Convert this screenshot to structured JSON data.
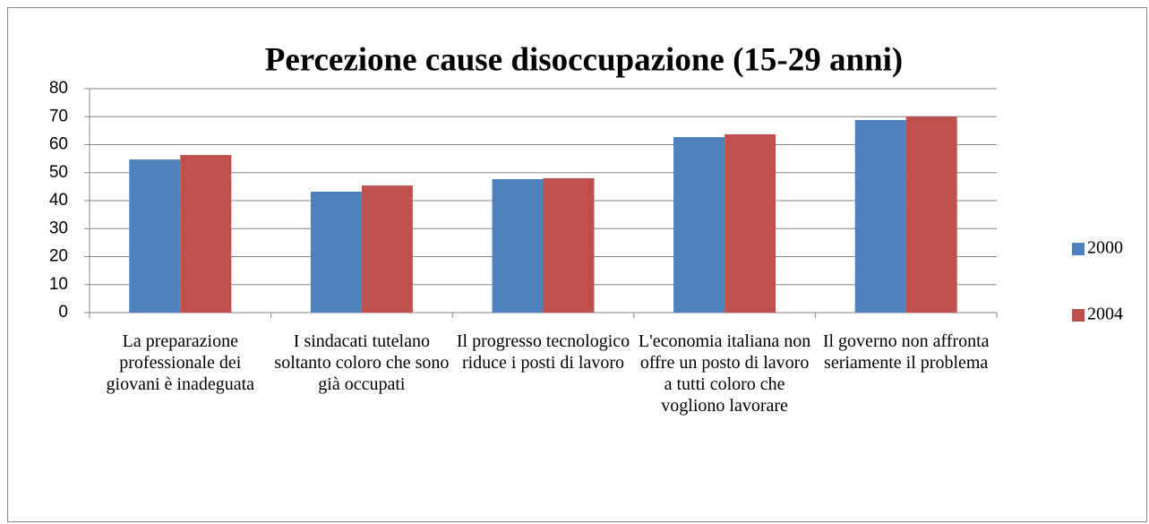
{
  "chart_data": {
    "type": "bar",
    "title": "Percezione cause disoccupazione (15-29 anni)",
    "categories": [
      "La preparazione professionale dei giovani è inadeguata",
      "I sindacati tutelano soltanto coloro che sono già occupati",
      "Il progresso tecnologico riduce i posti di lavoro",
      "L'economia italiana non offre un posto di lavoro a tutti coloro che vogliono lavorare",
      "Il governo non affronta seriamente il problema"
    ],
    "series": [
      {
        "name": "2000",
        "color": "#4f81bd",
        "values": [
          54.7,
          43.2,
          47.7,
          62.7,
          68.8
        ]
      },
      {
        "name": "2004",
        "color": "#c0504d",
        "values": [
          56.3,
          45.4,
          48,
          63.7,
          70
        ]
      }
    ],
    "ylim": [
      0,
      80
    ],
    "yticks": [
      0,
      10,
      20,
      30,
      40,
      50,
      60,
      70,
      80
    ],
    "grid": true,
    "legend": "right"
  }
}
